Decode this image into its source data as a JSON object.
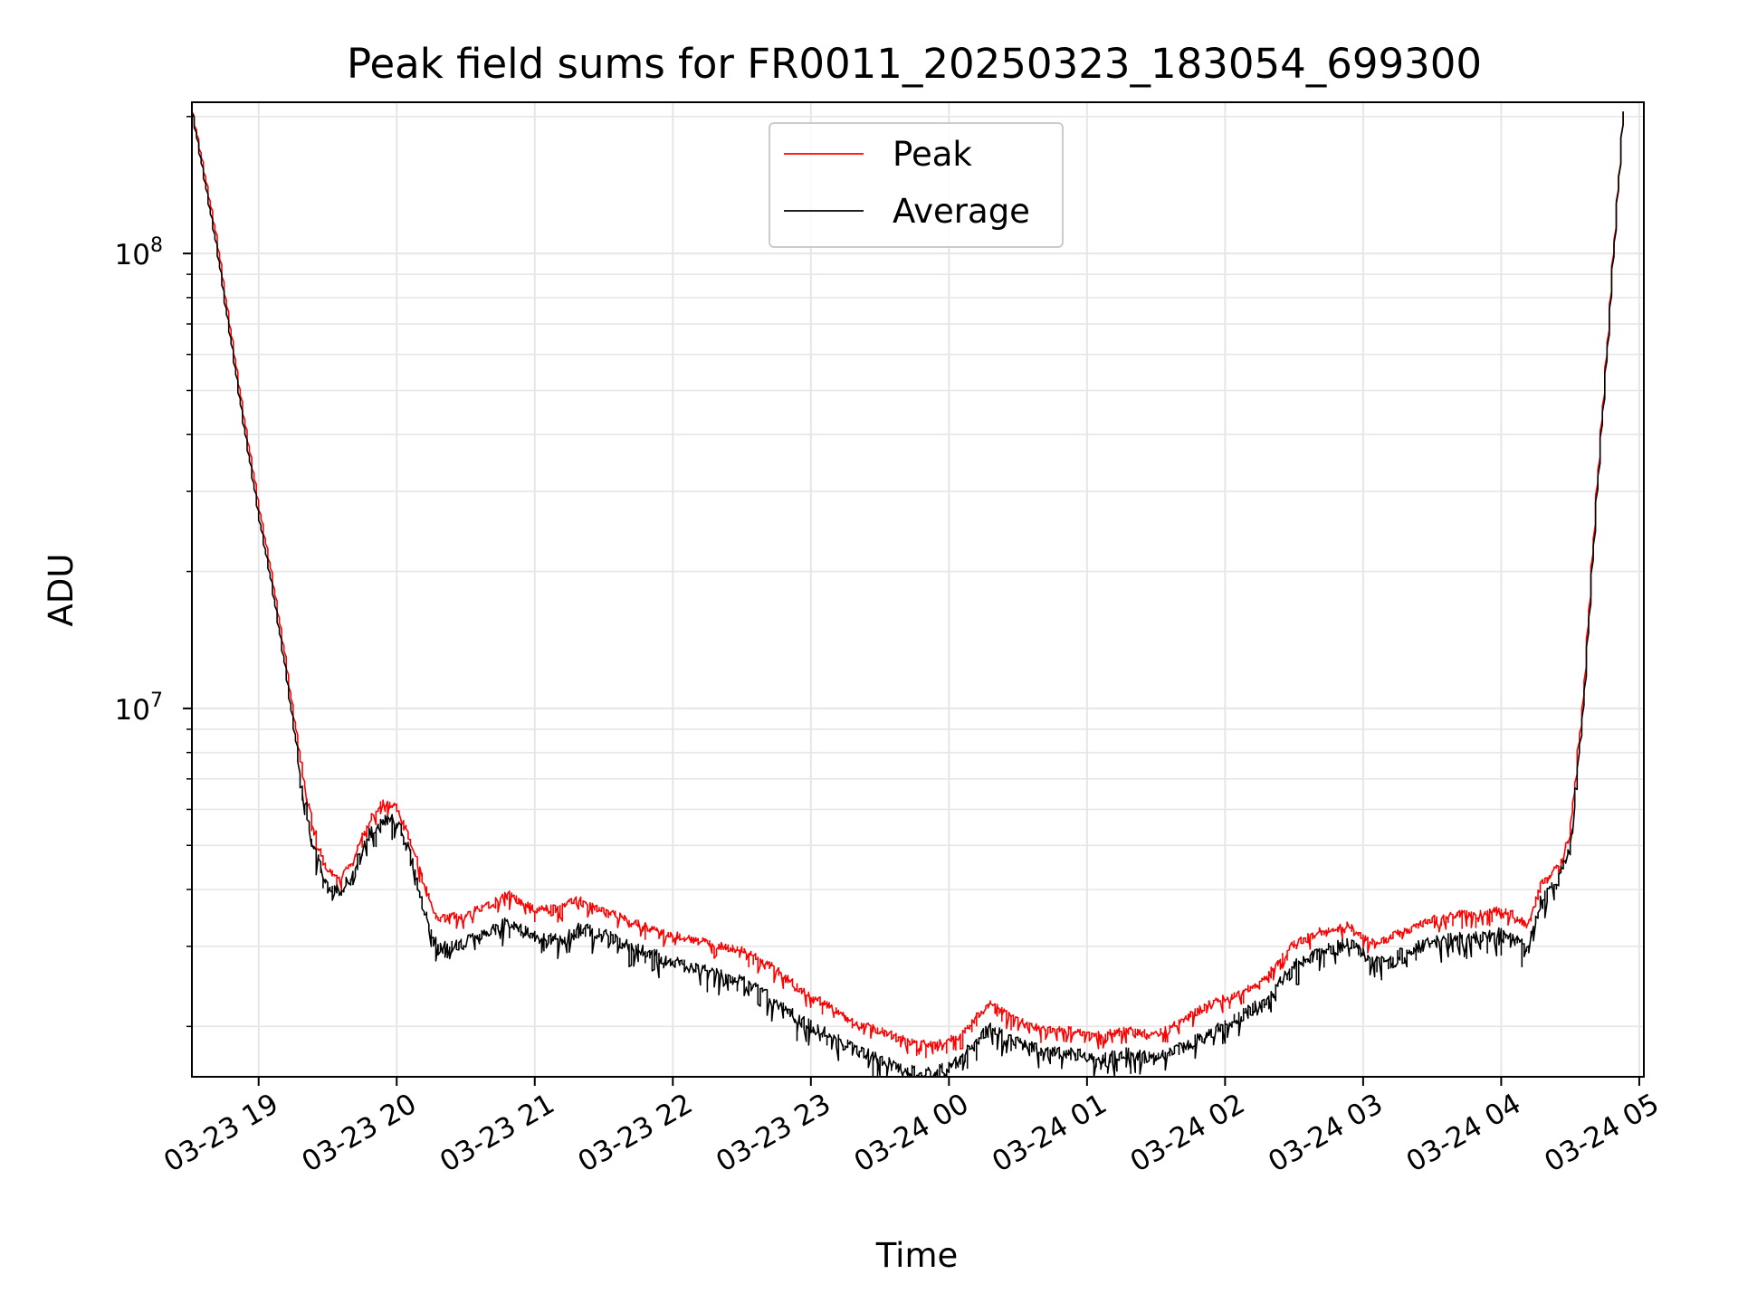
{
  "chart_data": {
    "type": "line",
    "title": "Peak field sums for FR0011_20250323_183054_699300",
    "xlabel": "Time",
    "ylabel": "ADU",
    "yscale": "log",
    "ylim": [
      1550000,
      215000000
    ],
    "xlim": [
      "2025-03-23T18:31",
      "2025-03-24T05:02"
    ],
    "grid": true,
    "legend_position": "top-center",
    "x_tick_labels": [
      "03-23 19",
      "03-23 20",
      "03-23 21",
      "03-23 22",
      "03-23 23",
      "03-24 00",
      "03-24 01",
      "03-24 02",
      "03-24 03",
      "03-24 04",
      "03-24 05"
    ],
    "x_ticks": [
      "2025-03-23T19:00",
      "2025-03-23T20:00",
      "2025-03-23T21:00",
      "2025-03-23T22:00",
      "2025-03-23T23:00",
      "2025-03-24T00:00",
      "2025-03-24T01:00",
      "2025-03-24T02:00",
      "2025-03-24T03:00",
      "2025-03-24T04:00",
      "2025-03-24T05:00"
    ],
    "y_ticks": [
      {
        "value": 10000000,
        "base": "10",
        "exp": "7"
      },
      {
        "value": 100000000,
        "base": "10",
        "exp": "8"
      }
    ],
    "x": [
      "2025-03-23T18:31",
      "2025-03-23T18:36",
      "2025-03-23T18:42",
      "2025-03-23T18:48",
      "2025-03-23T18:54",
      "2025-03-23T19:00",
      "2025-03-23T19:06",
      "2025-03-23T19:12",
      "2025-03-23T19:18",
      "2025-03-23T19:24",
      "2025-03-23T19:30",
      "2025-03-23T19:36",
      "2025-03-23T19:42",
      "2025-03-23T19:48",
      "2025-03-23T19:54",
      "2025-03-23T20:00",
      "2025-03-23T20:06",
      "2025-03-23T20:12",
      "2025-03-23T20:18",
      "2025-03-23T20:30",
      "2025-03-23T20:42",
      "2025-03-23T20:48",
      "2025-03-23T21:00",
      "2025-03-23T21:12",
      "2025-03-23T21:18",
      "2025-03-23T21:30",
      "2025-03-23T21:42",
      "2025-03-23T21:54",
      "2025-03-23T22:06",
      "2025-03-23T22:18",
      "2025-03-23T22:30",
      "2025-03-23T22:42",
      "2025-03-23T22:54",
      "2025-03-23T23:06",
      "2025-03-23T23:18",
      "2025-03-23T23:30",
      "2025-03-23T23:42",
      "2025-03-23T23:54",
      "2025-03-24T00:06",
      "2025-03-24T00:18",
      "2025-03-24T00:30",
      "2025-03-24T00:42",
      "2025-03-24T00:54",
      "2025-03-24T01:06",
      "2025-03-24T01:18",
      "2025-03-24T01:30",
      "2025-03-24T01:42",
      "2025-03-24T01:54",
      "2025-03-24T02:06",
      "2025-03-24T02:18",
      "2025-03-24T02:30",
      "2025-03-24T02:42",
      "2025-03-24T02:54",
      "2025-03-24T03:06",
      "2025-03-24T03:18",
      "2025-03-24T03:30",
      "2025-03-24T03:42",
      "2025-03-24T03:54",
      "2025-03-24T04:00",
      "2025-03-24T04:06",
      "2025-03-24T04:12",
      "2025-03-24T04:18",
      "2025-03-24T04:24",
      "2025-03-24T04:30",
      "2025-03-24T04:36",
      "2025-03-24T04:42",
      "2025-03-24T04:48",
      "2025-03-24T04:54"
    ],
    "series": [
      {
        "name": "Peak",
        "color": "#ff0000",
        "values": [
          215000000,
          160000000,
          110000000,
          70000000,
          44000000,
          29000000,
          20000000,
          13000000,
          8200000,
          5600000,
          4500000,
          4300000,
          4800000,
          5700000,
          6300000,
          6200000,
          5300000,
          4300000,
          3500000,
          3600000,
          3800000,
          4000000,
          3700000,
          3700000,
          3900000,
          3700000,
          3500000,
          3300000,
          3200000,
          3100000,
          3000000,
          2800000,
          2500000,
          2300000,
          2100000,
          2000000,
          1900000,
          1850000,
          1950000,
          2300000,
          2100000,
          2000000,
          2000000,
          1950000,
          2000000,
          1950000,
          2100000,
          2300000,
          2400000,
          2600000,
          3100000,
          3300000,
          3400000,
          3100000,
          3300000,
          3500000,
          3600000,
          3600000,
          3700000,
          3600000,
          3400000,
          4200000,
          4500000,
          5300000,
          10000000,
          30000000,
          80000000,
          215000000
        ]
      },
      {
        "name": "Average",
        "color": "#000000",
        "values": [
          215000000,
          155000000,
          105000000,
          67000000,
          42000000,
          27500000,
          19000000,
          12300000,
          7700000,
          5200000,
          4200000,
          4100000,
          4500000,
          5400000,
          5900000,
          5900000,
          5000000,
          3800000,
          3050000,
          3150000,
          3350000,
          3500000,
          3250000,
          3200000,
          3400000,
          3300000,
          3100000,
          2950000,
          2800000,
          2700000,
          2600000,
          2400000,
          2150000,
          2000000,
          1850000,
          1750000,
          1650000,
          1620000,
          1750000,
          2050000,
          1900000,
          1820000,
          1800000,
          1750000,
          1800000,
          1750000,
          1850000,
          2000000,
          2150000,
          2350000,
          2800000,
          3000000,
          3150000,
          2850000,
          3000000,
          3150000,
          3250000,
          3250000,
          3300000,
          3200000,
          3050000,
          3900000,
          4200000,
          5000000,
          9500000,
          29000000,
          78000000,
          215000000
        ]
      }
    ]
  }
}
